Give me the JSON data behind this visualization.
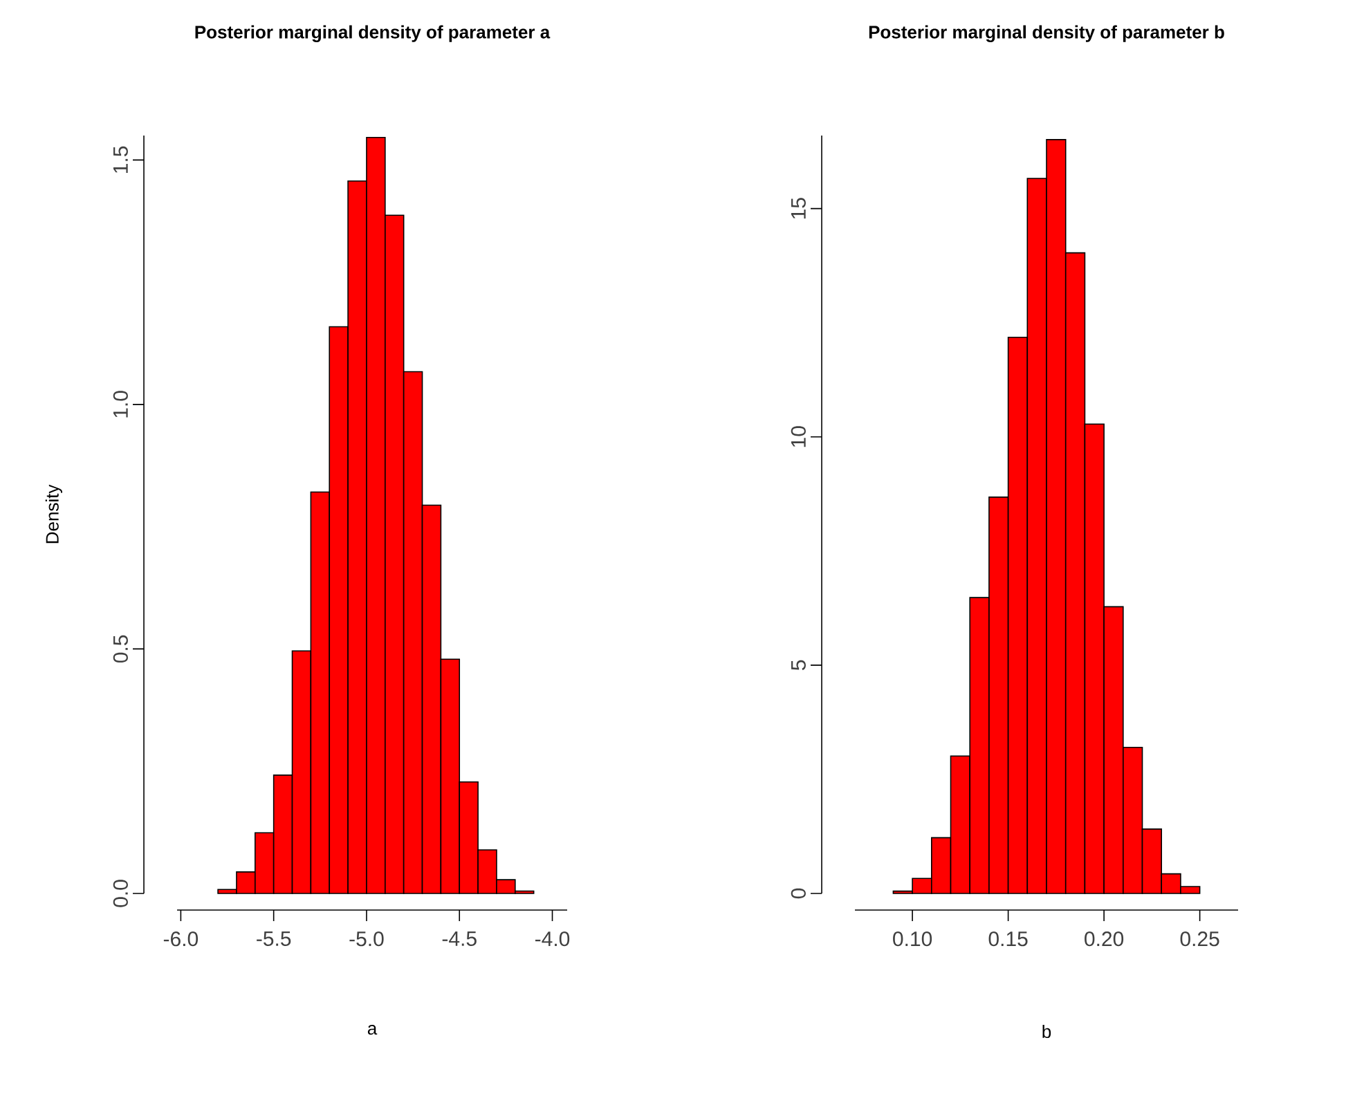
{
  "chart_data": [
    {
      "type": "histogram",
      "title": "Posterior marginal density of parameter a",
      "xlabel": "a",
      "ylabel": "Density",
      "color": "#ff0000",
      "bins": [
        -5.8,
        -5.7,
        -5.6,
        -5.5,
        -5.4,
        -5.3,
        -5.2,
        -5.1,
        -5.0,
        -4.9,
        -4.8,
        -4.7,
        -4.6,
        -4.5,
        -4.4,
        -4.3,
        -4.2,
        -4.1
      ],
      "values": [
        0.008,
        0.044,
        0.124,
        0.242,
        0.496,
        0.821,
        1.159,
        1.457,
        1.546,
        1.387,
        1.067,
        0.794,
        0.479,
        0.228,
        0.089,
        0.028,
        0.005
      ],
      "xlim": [
        -6.02,
        -3.92
      ],
      "ylim": [
        0,
        1.55
      ],
      "xticks": [
        {
          "value": -6,
          "label": "-6.0"
        },
        {
          "value": -5.5,
          "label": "-5.5"
        },
        {
          "value": -5,
          "label": "-5.0"
        },
        {
          "value": -4.5,
          "label": "-4.5"
        },
        {
          "value": -4,
          "label": "-4.0"
        }
      ],
      "yticks": [
        {
          "value": 0,
          "label": "0.0"
        },
        {
          "value": 0.5,
          "label": "0.5"
        },
        {
          "value": 1,
          "label": "1.0"
        },
        {
          "value": 1.5,
          "label": "1.5"
        }
      ]
    },
    {
      "type": "histogram",
      "title": "Posterior marginal density of parameter b",
      "xlabel": "b",
      "color": "#ff0000",
      "bins": [
        0.09,
        0.1,
        0.11,
        0.12,
        0.13,
        0.14,
        0.15,
        0.16,
        0.17,
        0.18,
        0.19,
        0.2,
        0.21,
        0.22,
        0.23,
        0.24,
        0.25
      ],
      "values": [
        0.05,
        0.33,
        1.22,
        3.01,
        6.48,
        8.68,
        12.18,
        15.66,
        16.51,
        14.03,
        10.28,
        6.28,
        3.2,
        1.41,
        0.43,
        0.15
      ],
      "xlim": [
        0.07,
        0.27
      ],
      "ylim": [
        0,
        16.6
      ],
      "xticks": [
        {
          "value": 0.1,
          "label": "0.10"
        },
        {
          "value": 0.15,
          "label": "0.15"
        },
        {
          "value": 0.2,
          "label": "0.20"
        },
        {
          "value": 0.25,
          "label": "0.25"
        }
      ],
      "yticks": [
        0,
        5,
        10,
        15
      ]
    }
  ]
}
